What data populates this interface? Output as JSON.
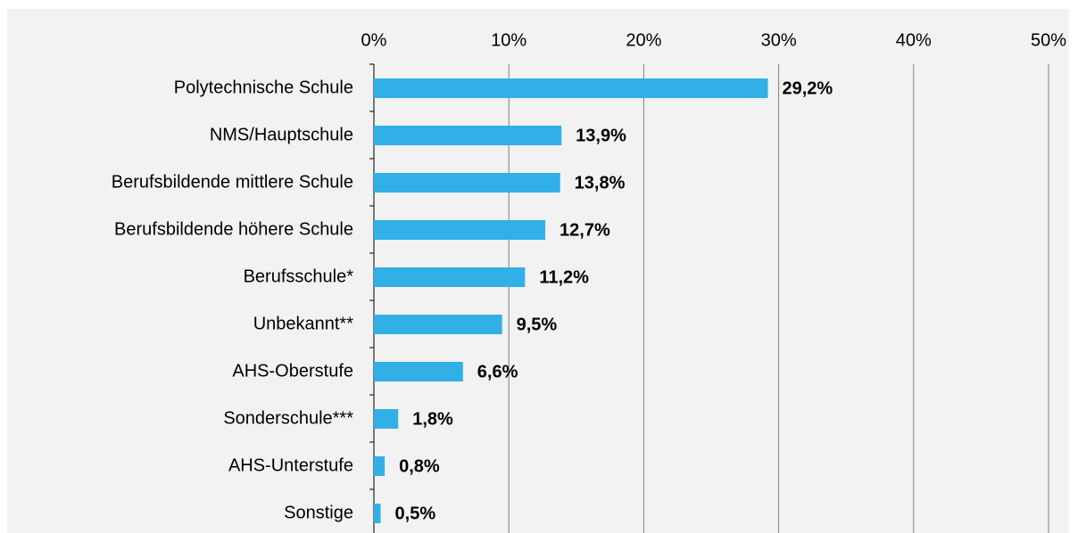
{
  "chart_data": {
    "type": "bar",
    "orientation": "horizontal",
    "categories": [
      "Polytechnische Schule",
      "NMS/Hauptschule",
      "Berufsbildende mittlere Schule",
      "Berufsbildende höhere Schule",
      "Berufsschule*",
      "Unbekannt**",
      "AHS-Oberstufe",
      "Sonderschule***",
      "AHS-Unterstufe",
      "Sonstige"
    ],
    "values": [
      29.2,
      13.9,
      13.8,
      12.7,
      11.2,
      9.5,
      6.6,
      1.8,
      0.8,
      0.5
    ],
    "value_labels": [
      "29,2%",
      "13,9%",
      "13,8%",
      "12,7%",
      "11,2%",
      "9,5%",
      "6,6%",
      "1,8%",
      "0,8%",
      "0,5%"
    ],
    "color": "#31b0e8",
    "xlim": [
      0,
      50
    ],
    "xticks": [
      {
        "value": 0,
        "label": "0%"
      },
      {
        "value": 10,
        "label": "10%"
      },
      {
        "value": 20,
        "label": "20%"
      },
      {
        "value": 30,
        "label": "30%"
      },
      {
        "value": 40,
        "label": "40%"
      },
      {
        "value": 50,
        "label": "50%"
      }
    ],
    "grid": true
  }
}
